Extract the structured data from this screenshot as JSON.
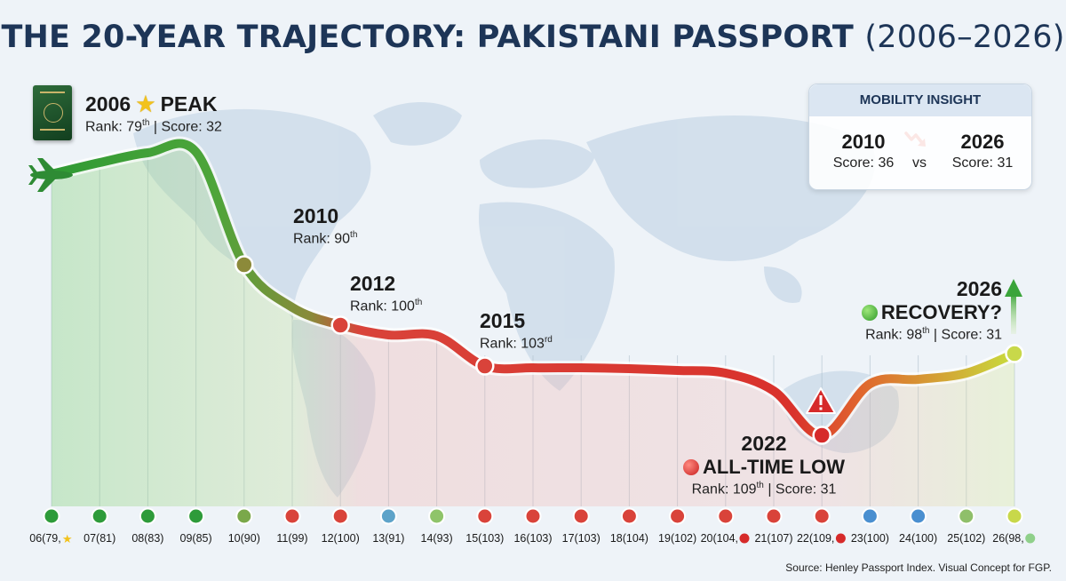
{
  "title": {
    "main": "THE 20-YEAR TRAJECTORY: PAKISTANI PASSPORT",
    "range": "(2006–2026)"
  },
  "chart_data": {
    "type": "line",
    "x": [
      2006,
      2007,
      2008,
      2009,
      2010,
      2011,
      2012,
      2013,
      2014,
      2015,
      2016,
      2017,
      2018,
      2019,
      2020,
      2021,
      2022,
      2023,
      2024,
      2025,
      2026
    ],
    "ranks": [
      79,
      81,
      83,
      85,
      90,
      99,
      100,
      91,
      93,
      103,
      103,
      103,
      104,
      102,
      104,
      107,
      109,
      100,
      100,
      102,
      98
    ],
    "tick_labels": [
      "06(79,",
      "07(81)",
      "08(83)",
      "09(85)",
      "10(90)",
      "11(99)",
      "12(100)",
      "13(91)",
      "14(93)",
      "15(103)",
      "16(103)",
      "17(103)",
      "18(104)",
      "19(102)",
      "20(104,",
      "21(107)",
      "22(109,",
      "23(100)",
      "24(100)",
      "25(102)",
      "26(98,"
    ],
    "tick_suffix_icons": [
      "star",
      "",
      "",
      "",
      "",
      "",
      "",
      "",
      "",
      "",
      "",
      "",
      "",
      "",
      "red-dot",
      "",
      "red-dot",
      "",
      "",
      "",
      "green-dot"
    ],
    "marker_colors": [
      "#2e9b3a",
      "#2e9b3a",
      "#2e9b3a",
      "#2e9b3a",
      "#7aa84a",
      "#d9433a",
      "#d9433a",
      "#5ea3c9",
      "#8fc46a",
      "#d9433a",
      "#d9433a",
      "#d9433a",
      "#d9433a",
      "#d9433a",
      "#d9433a",
      "#d9433a",
      "#d9433a",
      "#4a8fd0",
      "#4a8fd0",
      "#8fbf6a",
      "#c8d84a"
    ]
  },
  "annotations": {
    "peak": {
      "year": "2006",
      "label": "PEAK",
      "rank": "Rank: 79",
      "rank_sup": "th",
      "score": " | Score: 32"
    },
    "y2010": {
      "year": "2010",
      "rank": "Rank: 90",
      "sup": "th"
    },
    "y2012": {
      "year": "2012",
      "rank": "Rank: 100",
      "sup": "th"
    },
    "y2015": {
      "year": "2015",
      "rank": "Rank: 103",
      "sup": "rd"
    },
    "low": {
      "year": "2022",
      "label": "ALL-TIME LOW",
      "rank": "Rank: 109",
      "rank_sup": "th",
      "score": " | Score: 31"
    },
    "recovery": {
      "year": "2026",
      "label": "RECOVERY?",
      "rank": "Rank: 98",
      "rank_sup": "th",
      "score": " | Score: 31"
    }
  },
  "insight": {
    "header": "MOBILITY INSIGHT",
    "left_year": "2010",
    "left_score": "Score: 36",
    "vs": "vs",
    "right_year": "2026",
    "right_score": "Score: 31"
  },
  "source": "Source: Henley Passport Index. Visual Concept for FGP."
}
